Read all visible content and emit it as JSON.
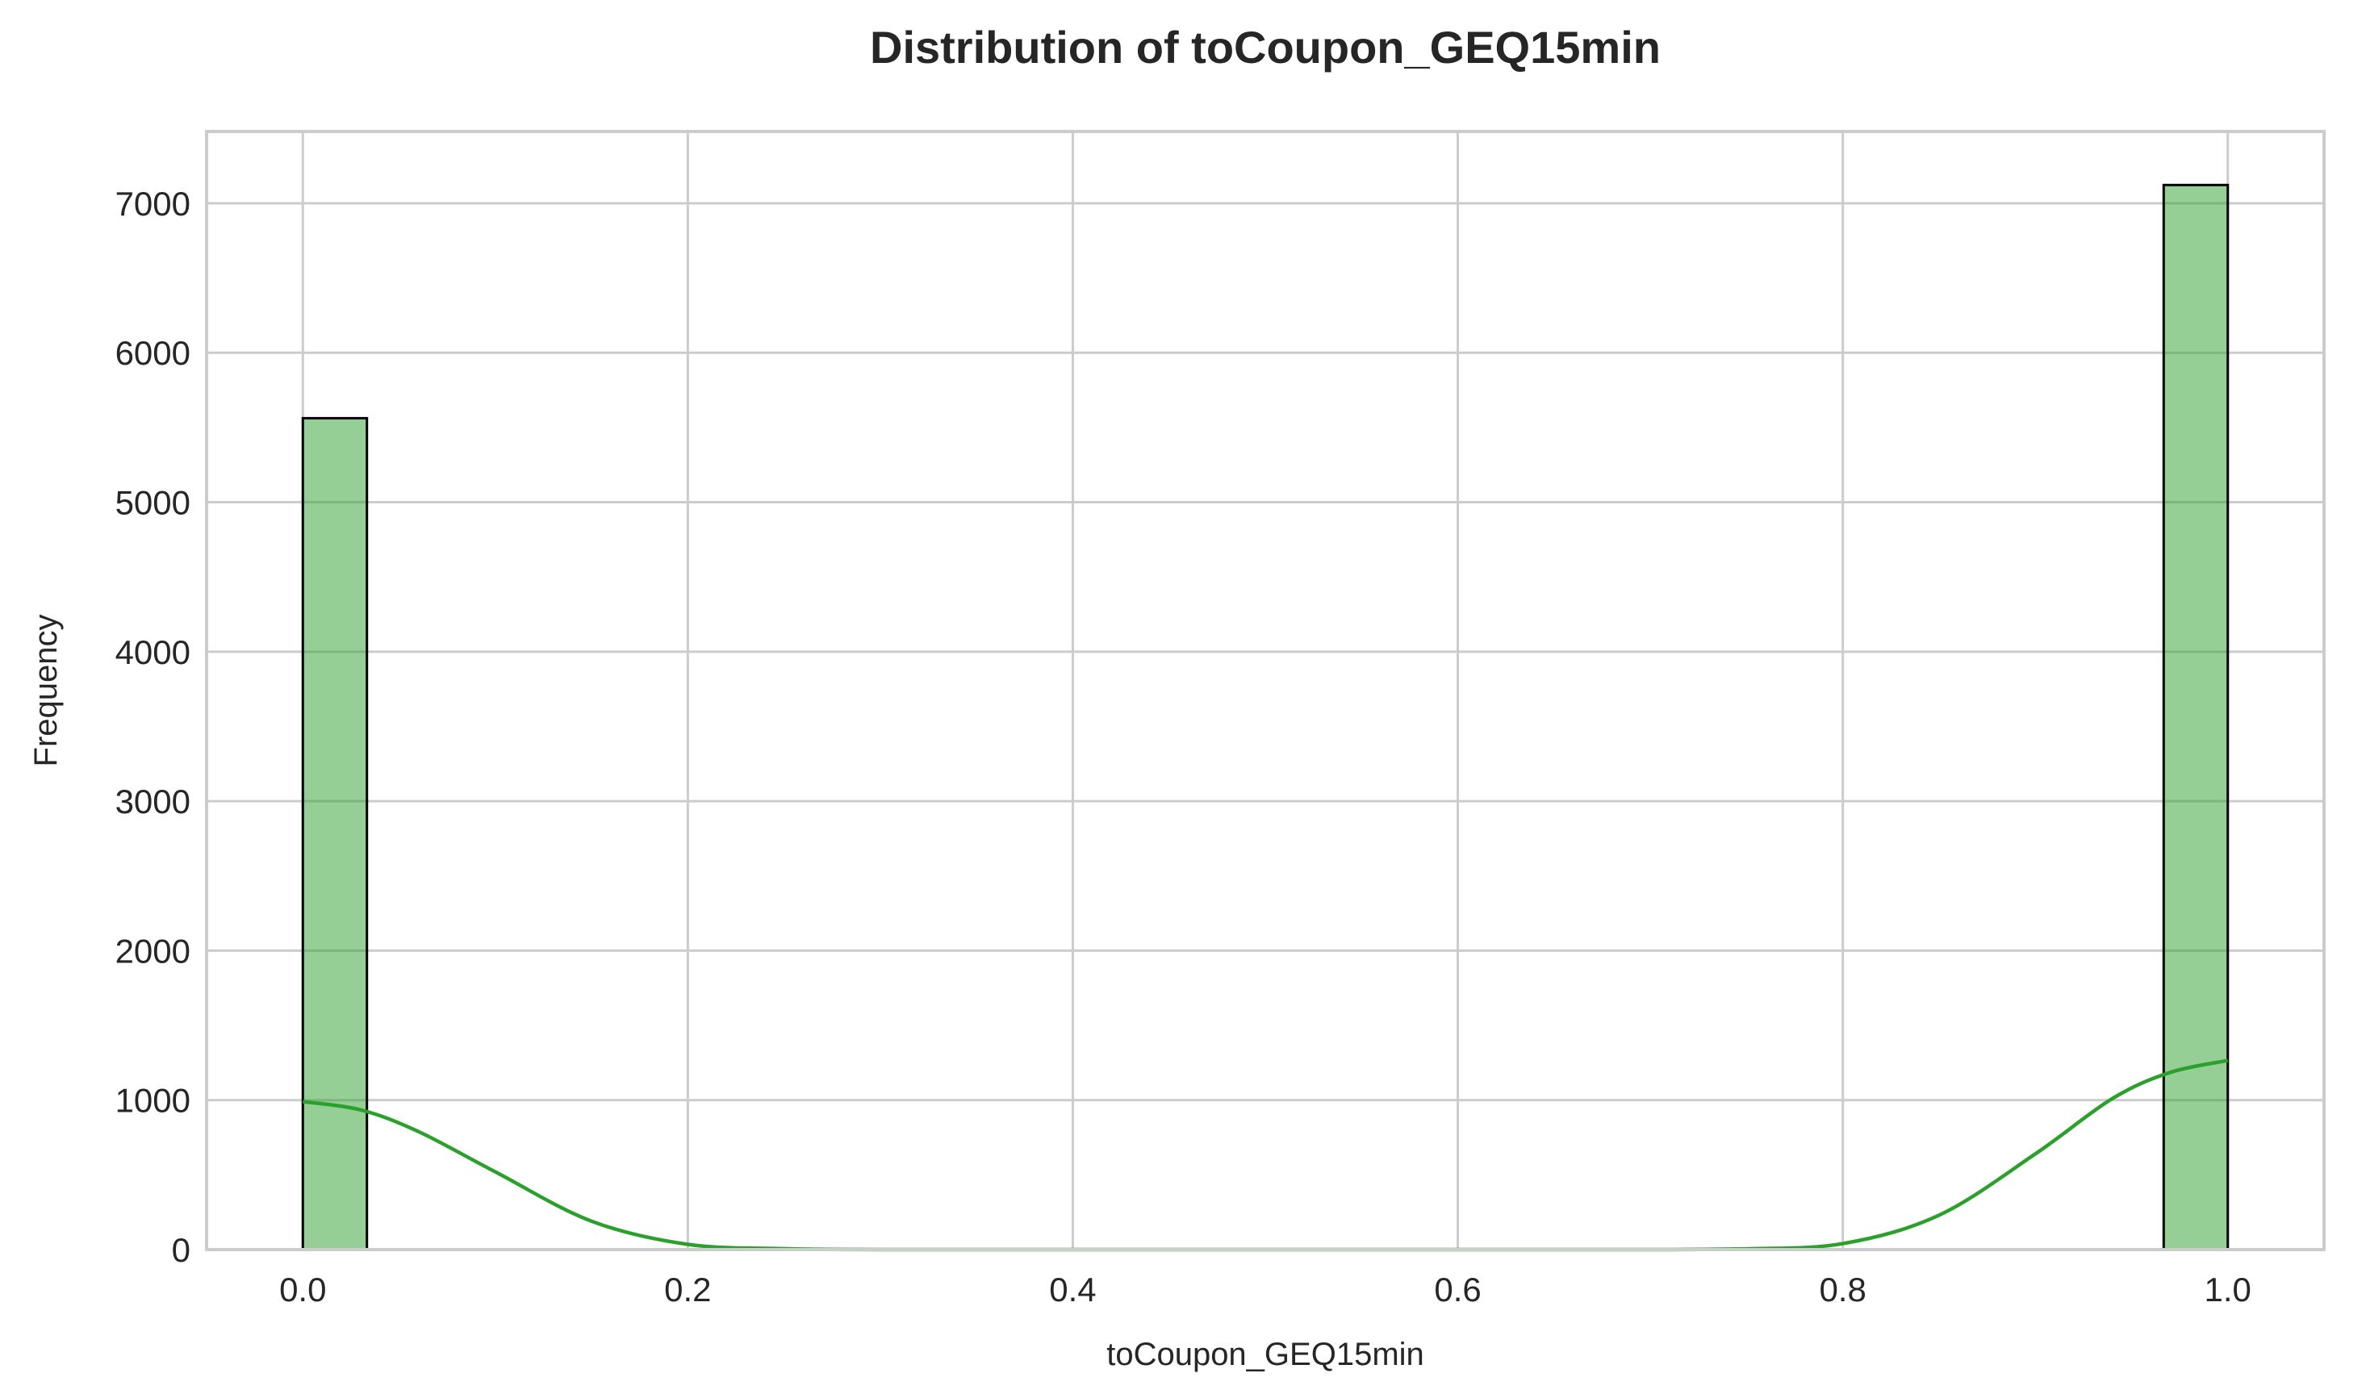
{
  "chart_data": {
    "type": "bar",
    "title": "Distribution of toCoupon_GEQ15min",
    "xlabel": "toCoupon_GEQ15min",
    "ylabel": "Frequency",
    "xlim": [
      -0.05,
      1.05
    ],
    "ylim": [
      0,
      7480
    ],
    "xticks": [
      "0.0",
      "0.2",
      "0.4",
      "0.6",
      "0.8",
      "1.0"
    ],
    "yticks": [
      "0",
      "1000",
      "2000",
      "3000",
      "4000",
      "5000",
      "6000",
      "7000"
    ],
    "grid": true,
    "bars": [
      {
        "x0": 0.0,
        "x1": 0.0333,
        "count": 5562
      },
      {
        "x0": 0.9667,
        "x1": 1.0,
        "count": 7122
      }
    ],
    "kde": {
      "x": [
        0.0,
        0.03,
        0.06,
        0.1,
        0.15,
        0.2,
        0.25,
        0.3,
        0.4,
        0.5,
        0.6,
        0.7,
        0.75,
        0.8,
        0.85,
        0.9,
        0.94,
        0.97,
        1.0
      ],
      "y": [
        990,
        935,
        790,
        520,
        190,
        35,
        6,
        0,
        0,
        0,
        0,
        0,
        5,
        40,
        230,
        640,
        1010,
        1185,
        1265
      ]
    },
    "colors": {
      "bar": "#2ca02c",
      "kde": "#2ca02c"
    }
  }
}
